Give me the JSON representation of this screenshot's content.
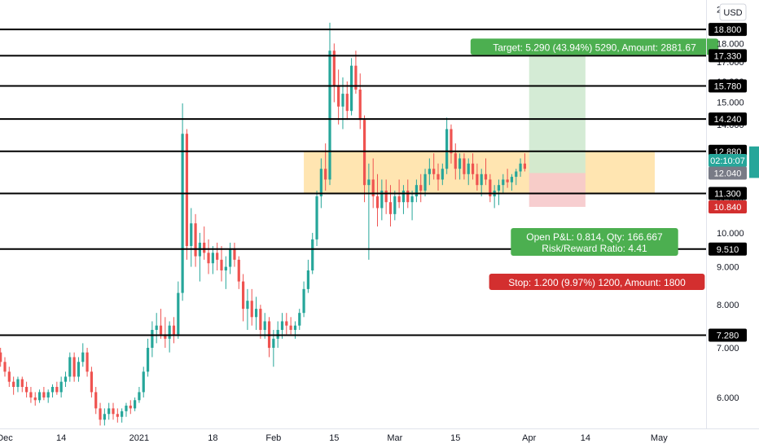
{
  "chart_data": {
    "type": "candlestick",
    "currency": "USD",
    "ylim": [
      5.45,
      20.6
    ],
    "y_ticks": [
      6.0,
      7.0,
      8.0,
      9.0,
      10.0,
      11.0,
      12.0,
      13.0,
      14.0,
      15.0,
      16.0,
      17.0,
      18.0,
      19.0,
      20.0
    ],
    "y_tick_labels": [
      "6.000",
      "7.000",
      "8.000",
      "9.000",
      "10.000",
      "11.000",
      "12.000",
      "13.000",
      "14.000",
      "15.000",
      "16.000",
      "17.000",
      "18.000",
      "19.000",
      "20.000"
    ],
    "x_ticks": [
      {
        "label": "Dec",
        "date": "2020-12-01"
      },
      {
        "label": "14",
        "date": "2020-12-14"
      },
      {
        "label": "2021",
        "date": "2021-01-01"
      },
      {
        "label": "18",
        "date": "2021-01-18"
      },
      {
        "label": "Feb",
        "date": "2021-02-01"
      },
      {
        "label": "15",
        "date": "2021-02-15"
      },
      {
        "label": "Mar",
        "date": "2021-03-01"
      },
      {
        "label": "15",
        "date": "2021-03-15"
      },
      {
        "label": "Apr",
        "date": "2021-04-01"
      },
      {
        "label": "14",
        "date": "2021-04-14"
      },
      {
        "label": "May",
        "date": "2021-05-01"
      }
    ],
    "horizontal_levels": [
      {
        "value": 18.8,
        "label": "18.800"
      },
      {
        "value": 17.33,
        "label": "17.330"
      },
      {
        "value": 15.78,
        "label": "15.780"
      },
      {
        "value": 14.24,
        "label": "14.240"
      },
      {
        "value": 12.88,
        "label": "12.880"
      },
      {
        "value": 11.3,
        "label": "11.300"
      },
      {
        "value": 9.51,
        "label": "9.510"
      },
      {
        "value": 7.28,
        "label": "7.280"
      }
    ],
    "price_tags": [
      {
        "value": 12.52,
        "label": "02:10:07",
        "bg": "#26a69a"
      },
      {
        "value": 12.04,
        "label": "12.040",
        "bg": "#787b86"
      },
      {
        "value": 10.84,
        "label": "10.840",
        "bg": "#d32f2f"
      }
    ],
    "zone": {
      "from_date": "2021-02-08",
      "to_date": "2021-04-30",
      "low": 11.3,
      "high": 12.88
    },
    "position": {
      "from_date": "2021-04-01",
      "to_date": "2021-04-14",
      "entry": 12.04,
      "target": 17.33,
      "stop": 10.84,
      "target_label": "Target: 5.290 (43.94%) 5290, Amount: 2881.67",
      "stop_label": "Stop: 1.200 (9.97%) 1200, Amount: 1800",
      "pnl_label": "Open P&L: 0.814, Qty: 166.667",
      "rr_label": "Risk/Reward Ratio: 4.41"
    },
    "candles": [
      [
        "2020-11-29",
        7.0,
        7.1,
        6.8,
        6.9
      ],
      [
        "2020-11-30",
        6.9,
        7.0,
        6.6,
        6.7
      ],
      [
        "2020-12-01",
        6.7,
        6.8,
        6.4,
        6.5
      ],
      [
        "2020-12-02",
        6.5,
        6.6,
        6.2,
        6.3
      ],
      [
        "2020-12-03",
        6.3,
        6.4,
        6.05,
        6.2
      ],
      [
        "2020-12-04",
        6.2,
        6.4,
        6.1,
        6.35
      ],
      [
        "2020-12-05",
        6.35,
        6.4,
        6.1,
        6.2
      ],
      [
        "2020-12-06",
        6.2,
        6.3,
        6.0,
        6.1
      ],
      [
        "2020-12-07",
        6.1,
        6.2,
        5.9,
        6.0
      ],
      [
        "2020-12-08",
        6.0,
        6.1,
        5.85,
        5.95
      ],
      [
        "2020-12-09",
        5.95,
        6.15,
        5.9,
        6.1
      ],
      [
        "2020-12-10",
        6.1,
        6.2,
        5.95,
        6.0
      ],
      [
        "2020-12-11",
        6.0,
        6.15,
        5.9,
        6.1
      ],
      [
        "2020-12-12",
        6.1,
        6.25,
        6.0,
        6.2
      ],
      [
        "2020-12-13",
        6.2,
        6.3,
        6.05,
        6.1
      ],
      [
        "2020-12-14",
        6.1,
        6.4,
        6.0,
        6.3
      ],
      [
        "2020-12-15",
        6.3,
        6.5,
        6.2,
        6.4
      ],
      [
        "2020-12-16",
        6.4,
        6.9,
        6.3,
        6.8
      ],
      [
        "2020-12-17",
        6.8,
        6.9,
        6.3,
        6.4
      ],
      [
        "2020-12-18",
        6.4,
        6.8,
        6.3,
        6.7
      ],
      [
        "2020-12-19",
        6.7,
        7.1,
        6.6,
        6.9
      ],
      [
        "2020-12-20",
        6.9,
        7.0,
        6.4,
        6.5
      ],
      [
        "2020-12-21",
        6.5,
        6.6,
        6.0,
        6.1
      ],
      [
        "2020-12-22",
        6.1,
        6.2,
        5.7,
        5.8
      ],
      [
        "2020-12-23",
        5.8,
        5.9,
        5.5,
        5.6
      ],
      [
        "2020-12-24",
        5.6,
        5.8,
        5.5,
        5.7
      ],
      [
        "2020-12-25",
        5.7,
        5.9,
        5.6,
        5.8
      ],
      [
        "2020-12-26",
        5.8,
        5.9,
        5.6,
        5.7
      ],
      [
        "2020-12-27",
        5.7,
        5.8,
        5.55,
        5.65
      ],
      [
        "2020-12-28",
        5.65,
        5.8,
        5.55,
        5.75
      ],
      [
        "2020-12-29",
        5.75,
        5.9,
        5.65,
        5.85
      ],
      [
        "2020-12-30",
        5.85,
        5.95,
        5.7,
        5.8
      ],
      [
        "2020-12-31",
        5.8,
        6.0,
        5.75,
        5.95
      ],
      [
        "2021-01-01",
        5.95,
        6.2,
        5.9,
        6.1
      ],
      [
        "2021-01-02",
        6.1,
        6.6,
        6.0,
        6.5
      ],
      [
        "2021-01-03",
        6.5,
        7.2,
        6.4,
        7.0
      ],
      [
        "2021-01-04",
        7.0,
        7.6,
        6.8,
        7.4
      ],
      [
        "2021-01-05",
        7.4,
        7.8,
        7.1,
        7.5
      ],
      [
        "2021-01-06",
        7.5,
        7.9,
        7.2,
        7.3
      ],
      [
        "2021-01-07",
        7.3,
        7.7,
        7.0,
        7.2
      ],
      [
        "2021-01-08",
        7.2,
        7.6,
        6.9,
        7.5
      ],
      [
        "2021-01-09",
        7.5,
        7.7,
        7.1,
        7.3
      ],
      [
        "2021-01-10",
        7.3,
        8.6,
        7.2,
        8.3
      ],
      [
        "2021-01-11",
        8.3,
        14.95,
        8.1,
        13.6
      ],
      [
        "2021-01-12",
        13.6,
        13.8,
        9.2,
        9.6
      ],
      [
        "2021-01-13",
        9.6,
        10.8,
        9.0,
        10.3
      ],
      [
        "2021-01-14",
        10.3,
        10.6,
        9.0,
        9.3
      ],
      [
        "2021-01-15",
        9.3,
        10.0,
        8.6,
        9.7
      ],
      [
        "2021-01-16",
        9.7,
        10.2,
        9.2,
        9.4
      ],
      [
        "2021-01-17",
        9.4,
        9.8,
        8.8,
        9.1
      ],
      [
        "2021-01-18",
        9.1,
        9.6,
        8.8,
        9.4
      ],
      [
        "2021-01-19",
        9.4,
        9.7,
        8.9,
        9.2
      ],
      [
        "2021-01-20",
        9.2,
        9.6,
        8.6,
        8.9
      ],
      [
        "2021-01-21",
        8.9,
        9.3,
        8.4,
        9.0
      ],
      [
        "2021-01-22",
        9.0,
        9.7,
        8.8,
        9.5
      ],
      [
        "2021-01-23",
        9.5,
        9.7,
        9.0,
        9.2
      ],
      [
        "2021-01-24",
        9.2,
        9.3,
        8.4,
        8.6
      ],
      [
        "2021-01-25",
        8.6,
        8.8,
        7.6,
        7.9
      ],
      [
        "2021-01-26",
        7.9,
        8.4,
        7.4,
        8.1
      ],
      [
        "2021-01-27",
        8.1,
        8.4,
        7.5,
        7.7
      ],
      [
        "2021-01-28",
        7.7,
        8.2,
        7.4,
        7.9
      ],
      [
        "2021-01-29",
        7.9,
        8.0,
        7.2,
        7.4
      ],
      [
        "2021-01-30",
        7.4,
        7.8,
        7.2,
        7.6
      ],
      [
        "2021-01-31",
        7.6,
        7.7,
        6.8,
        7.0
      ],
      [
        "2021-02-01",
        7.0,
        7.4,
        6.6,
        7.2
      ],
      [
        "2021-02-02",
        7.2,
        7.6,
        7.0,
        7.4
      ],
      [
        "2021-02-03",
        7.4,
        7.8,
        7.2,
        7.6
      ],
      [
        "2021-02-04",
        7.6,
        7.8,
        7.3,
        7.5
      ],
      [
        "2021-02-05",
        7.5,
        7.7,
        7.3,
        7.4
      ],
      [
        "2021-02-06",
        7.4,
        7.6,
        7.2,
        7.5
      ],
      [
        "2021-02-07",
        7.5,
        7.9,
        7.4,
        7.8
      ],
      [
        "2021-02-08",
        7.8,
        8.6,
        7.7,
        8.4
      ],
      [
        "2021-02-09",
        8.4,
        9.2,
        8.3,
        8.9
      ],
      [
        "2021-02-10",
        8.9,
        10.0,
        8.8,
        9.8
      ],
      [
        "2021-02-11",
        9.8,
        11.4,
        9.6,
        11.2
      ],
      [
        "2021-02-12",
        11.2,
        12.6,
        10.8,
        12.2
      ],
      [
        "2021-02-13",
        12.2,
        13.2,
        11.4,
        11.8
      ],
      [
        "2021-02-14",
        11.8,
        19.2,
        11.6,
        17.6
      ],
      [
        "2021-02-15",
        17.6,
        18.0,
        15.0,
        15.8
      ],
      [
        "2021-02-16",
        15.8,
        16.6,
        14.0,
        14.8
      ],
      [
        "2021-02-17",
        14.8,
        16.2,
        13.8,
        15.4
      ],
      [
        "2021-02-18",
        15.4,
        16.0,
        14.2,
        14.6
      ],
      [
        "2021-02-19",
        14.6,
        17.2,
        14.4,
        16.8
      ],
      [
        "2021-02-20",
        16.8,
        17.6,
        15.4,
        15.6
      ],
      [
        "2021-02-21",
        15.6,
        16.4,
        13.8,
        14.2
      ],
      [
        "2021-02-22",
        14.2,
        14.4,
        11.0,
        11.6
      ],
      [
        "2021-02-23",
        11.6,
        12.4,
        9.2,
        11.8
      ],
      [
        "2021-02-24",
        11.8,
        12.6,
        10.8,
        11.2
      ],
      [
        "2021-02-25",
        11.2,
        12.0,
        10.2,
        10.8
      ],
      [
        "2021-02-26",
        10.8,
        11.8,
        10.4,
        11.4
      ],
      [
        "2021-02-27",
        11.4,
        11.8,
        10.6,
        11.0
      ],
      [
        "2021-02-28",
        11.0,
        11.6,
        10.2,
        10.6
      ],
      [
        "2021-03-01",
        10.6,
        11.4,
        10.4,
        11.2
      ],
      [
        "2021-03-02",
        11.2,
        11.8,
        10.8,
        11.0
      ],
      [
        "2021-03-03",
        11.0,
        11.6,
        10.6,
        11.4
      ],
      [
        "2021-03-04",
        11.4,
        11.8,
        10.8,
        11.0
      ],
      [
        "2021-03-05",
        11.0,
        11.4,
        10.4,
        11.2
      ],
      [
        "2021-03-06",
        11.2,
        11.8,
        11.0,
        11.6
      ],
      [
        "2021-03-07",
        11.6,
        12.0,
        11.0,
        11.4
      ],
      [
        "2021-03-08",
        11.4,
        12.2,
        11.2,
        12.0
      ],
      [
        "2021-03-09",
        12.0,
        12.6,
        11.6,
        12.2
      ],
      [
        "2021-03-10",
        12.2,
        12.8,
        11.8,
        12.0
      ],
      [
        "2021-03-11",
        12.0,
        12.4,
        11.4,
        11.8
      ],
      [
        "2021-03-12",
        11.8,
        12.4,
        11.6,
        12.2
      ],
      [
        "2021-03-13",
        12.2,
        14.3,
        12.0,
        13.8
      ],
      [
        "2021-03-14",
        13.8,
        14.0,
        12.4,
        12.8
      ],
      [
        "2021-03-15",
        12.8,
        13.2,
        11.8,
        12.2
      ],
      [
        "2021-03-16",
        12.2,
        12.8,
        11.8,
        12.6
      ],
      [
        "2021-03-17",
        12.6,
        12.8,
        11.8,
        12.0
      ],
      [
        "2021-03-18",
        12.0,
        12.6,
        11.6,
        12.4
      ],
      [
        "2021-03-19",
        12.4,
        12.8,
        11.8,
        12.0
      ],
      [
        "2021-03-20",
        12.0,
        12.4,
        11.4,
        11.6
      ],
      [
        "2021-03-21",
        11.6,
        12.2,
        11.2,
        12.0
      ],
      [
        "2021-03-22",
        12.0,
        12.6,
        11.6,
        11.8
      ],
      [
        "2021-03-23",
        11.8,
        12.0,
        11.0,
        11.2
      ],
      [
        "2021-03-24",
        11.2,
        11.6,
        10.8,
        11.4
      ],
      [
        "2021-03-25",
        11.4,
        11.8,
        10.9,
        11.6
      ],
      [
        "2021-03-26",
        11.6,
        12.0,
        11.3,
        11.8
      ],
      [
        "2021-03-27",
        11.8,
        12.2,
        11.5,
        11.7
      ],
      [
        "2021-03-28",
        11.7,
        12.0,
        11.4,
        11.9
      ],
      [
        "2021-03-29",
        11.9,
        12.2,
        11.6,
        12.1
      ],
      [
        "2021-03-30",
        12.1,
        12.6,
        11.9,
        12.4
      ],
      [
        "2021-03-31",
        12.4,
        12.8,
        12.1,
        12.2
      ]
    ]
  }
}
